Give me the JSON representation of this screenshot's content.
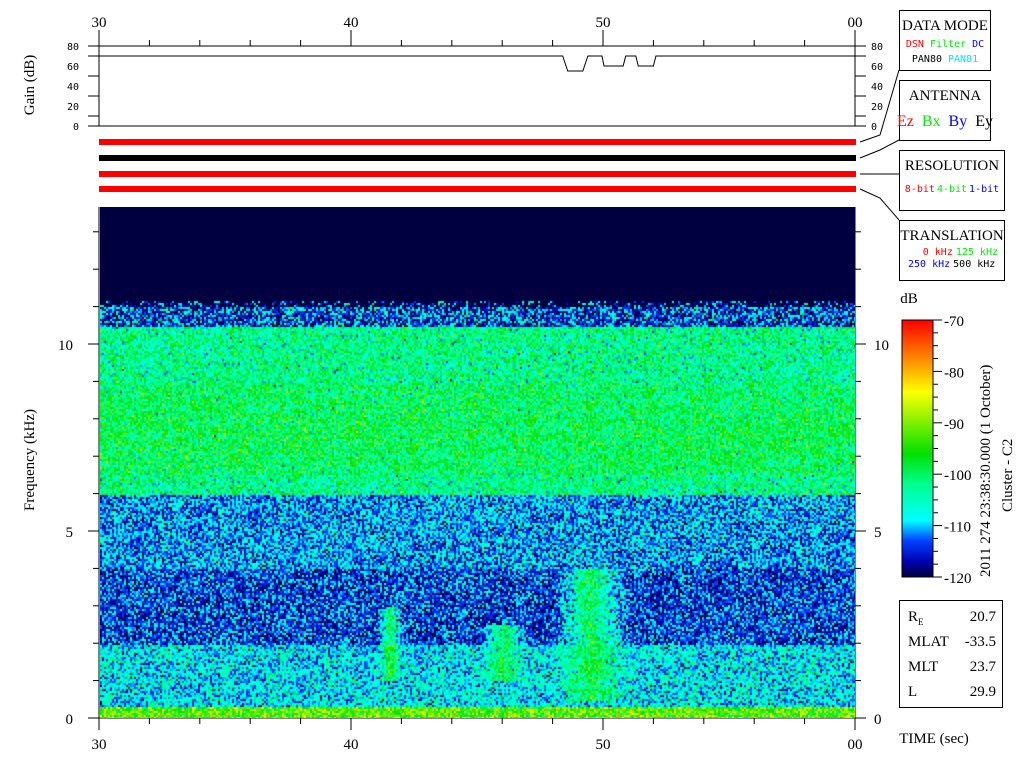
{
  "colors": {
    "red": "#ff0000",
    "green": "#00ee00",
    "blue": "#0000ff",
    "cyan": "#00ffff",
    "black": "#000000",
    "background_navy": "#00004f"
  },
  "data_mode": {
    "title": "DATA MODE",
    "items": [
      {
        "label": "DSN",
        "color": "#ff0000"
      },
      {
        "label": "Filter",
        "color": "#00ee00"
      },
      {
        "label": "DC",
        "color": "#0000ff"
      }
    ],
    "items2": [
      {
        "label": "PAN80",
        "color": "#000000"
      },
      {
        "label": "PAN81",
        "color": "#00e5ff"
      }
    ]
  },
  "antenna": {
    "title": "ANTENNA",
    "items": [
      {
        "label": "Ez",
        "color": "#ff0000"
      },
      {
        "label": "Bx",
        "color": "#00ee00"
      },
      {
        "label": "By",
        "color": "#0000ff"
      },
      {
        "label": "Ey",
        "color": "#000000"
      }
    ]
  },
  "resolution": {
    "title": "RESOLUTION",
    "items": [
      {
        "label": "8-bit",
        "color": "#ff0000"
      },
      {
        "label": "4-bit",
        "color": "#00ee00"
      },
      {
        "label": "1-bit",
        "color": "#0000ff"
      }
    ]
  },
  "translation": {
    "title": "TRANSLATION",
    "items": [
      {
        "label": "0 kHz",
        "color": "#ff0000"
      },
      {
        "label": "125 kHz",
        "color": "#00ee00"
      }
    ],
    "items2": [
      {
        "label": "250 kHz",
        "color": "#0000ff"
      },
      {
        "label": "500 kHz",
        "color": "#000000"
      }
    ]
  },
  "status_bars": [
    {
      "color": "#ff0000"
    },
    {
      "color": "#000000"
    },
    {
      "color": "#ff0000"
    },
    {
      "color": "#ff0000"
    }
  ],
  "info": {
    "rows": [
      {
        "label": "R",
        "sub": "E",
        "value": "20.7"
      },
      {
        "label": "MLAT",
        "value": "-33.5"
      },
      {
        "label": "MLT",
        "value": "23.7"
      },
      {
        "label": "L",
        "value": "29.9"
      }
    ]
  },
  "caption": {
    "timestamp": "2011 274 23:38:30.000 (1 October)",
    "spacecraft": "Cluster - C2"
  },
  "chart_data": [
    {
      "type": "line",
      "ylabel": "Gain (dB)",
      "xticks": [
        "30",
        "40",
        "50",
        "00"
      ],
      "xlim": [
        30,
        60
      ],
      "ylim": [
        0,
        80
      ],
      "yticks": [
        0,
        20,
        40,
        60,
        80
      ],
      "series": [
        {
          "points": [
            [
              30,
              70
            ],
            [
              48.4,
              70
            ],
            [
              48.6,
              55
            ],
            [
              49.2,
              55
            ],
            [
              49.4,
              70
            ],
            [
              49.96,
              70
            ],
            [
              50.04,
              60
            ],
            [
              50.8,
              60
            ],
            [
              50.9,
              70
            ],
            [
              51.3,
              70
            ],
            [
              51.4,
              60
            ],
            [
              52.0,
              60
            ],
            [
              52.1,
              70
            ],
            [
              60,
              70
            ]
          ]
        }
      ]
    },
    {
      "type": "heatmap",
      "xlabel": "TIME (sec)",
      "ylabel": "Frequency (kHz)",
      "xticks": [
        "30",
        "40",
        "50",
        "00"
      ],
      "xlim": [
        30,
        60
      ],
      "yticks": [
        0,
        5,
        10
      ],
      "ylim": [
        0,
        13.7
      ],
      "colorbar": {
        "label": "dB",
        "range": [
          -120,
          -70
        ],
        "ticks": [
          -70,
          -80,
          -90,
          -100,
          -110,
          -120
        ]
      },
      "intensity_profile_db": [
        {
          "freq_khz": [
            0,
            0.3
          ],
          "db": -92
        },
        {
          "freq_khz": [
            0.3,
            2
          ],
          "db": -108
        },
        {
          "freq_khz": [
            2,
            4
          ],
          "db": -114
        },
        {
          "freq_khz": [
            4,
            6
          ],
          "db": -111
        },
        {
          "freq_khz": [
            6,
            10.5
          ],
          "db": -102
        },
        {
          "freq_khz": [
            10.5,
            11
          ],
          "db": -110
        },
        {
          "freq_khz": [
            11,
            13.7
          ],
          "db": -125
        }
      ],
      "enhancements": [
        {
          "time_s": [
            41,
            42
          ],
          "freq_khz": [
            1,
            3
          ],
          "db": -96
        },
        {
          "time_s": [
            45,
            47
          ],
          "freq_khz": [
            1,
            2.5
          ],
          "db": -98
        },
        {
          "time_s": [
            48,
            51
          ],
          "freq_khz": [
            0.5,
            4
          ],
          "db": -97
        }
      ]
    }
  ]
}
